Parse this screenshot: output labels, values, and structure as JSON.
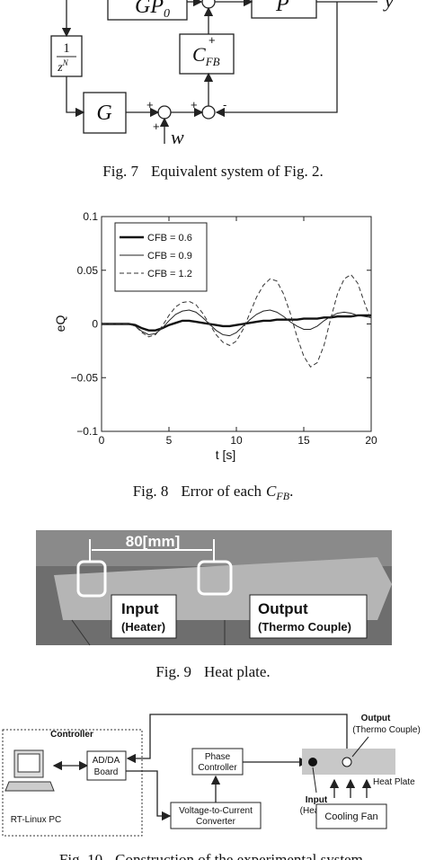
{
  "fig7": {
    "blocks": {
      "gp_base": "GP",
      "gp_sub": "0",
      "plant": "P",
      "delay_num": "1",
      "delay_den_base": "z",
      "delay_den_exp": "N",
      "feedback_base": "C",
      "feedback_sub": "FB",
      "gain": "G"
    },
    "signals": {
      "w": "w",
      "y": "y"
    },
    "signs": [
      "+",
      "+",
      "+",
      "+",
      "-"
    ],
    "caption": {
      "label": "Fig. 7",
      "text": "Equivalent system of Fig. 2."
    }
  },
  "chart_data": {
    "type": "line",
    "xlabel": "t [s]",
    "ylabel": "eQ",
    "x": [
      0,
      0.5,
      1,
      1.5,
      2,
      2.5,
      3,
      3.5,
      4,
      4.5,
      5,
      5.5,
      6,
      6.5,
      7,
      7.5,
      8,
      8.5,
      9,
      9.5,
      10,
      10.5,
      11,
      11.5,
      12,
      12.5,
      13,
      13.5,
      14,
      14.5,
      15,
      15.5,
      16,
      16.5,
      17,
      17.5,
      18,
      18.5,
      19,
      19.5,
      20
    ],
    "series": [
      {
        "name": "CFB = 0.6",
        "color": "#111111",
        "style": "thick",
        "values": [
          0,
          0,
          0,
          0,
          0,
          -0.001,
          -0.004,
          -0.006,
          -0.006,
          -0.004,
          -0.001,
          0.001,
          0.003,
          0.003,
          0.002,
          0.001,
          0,
          -0.001,
          -0.002,
          -0.002,
          -0.001,
          0,
          0.001,
          0.002,
          0.003,
          0.003,
          0.004,
          0.004,
          0.004,
          0.004,
          0.005,
          0.005,
          0.005,
          0.006,
          0.006,
          0.007,
          0.007,
          0.007,
          0.008,
          0.008,
          0.008
        ]
      },
      {
        "name": "CFB = 0.9",
        "color": "#222222",
        "style": "thin",
        "values": [
          0,
          0,
          0,
          0,
          0,
          -0.002,
          -0.007,
          -0.01,
          -0.009,
          -0.004,
          0.003,
          0.009,
          0.012,
          0.013,
          0.011,
          0.006,
          0,
          -0.006,
          -0.01,
          -0.011,
          -0.008,
          -0.002,
          0.004,
          0.009,
          0.012,
          0.013,
          0.011,
          0.007,
          0.002,
          -0.002,
          -0.005,
          -0.005,
          -0.002,
          0.003,
          0.007,
          0.01,
          0.011,
          0.01,
          0.008,
          0.007,
          0.006
        ]
      },
      {
        "name": "CFB = 1.2",
        "color": "#333333",
        "style": "dashed",
        "values": [
          0,
          0,
          0,
          0,
          0,
          -0.002,
          -0.008,
          -0.012,
          -0.01,
          -0.002,
          0.008,
          0.016,
          0.02,
          0.021,
          0.018,
          0.01,
          0,
          -0.01,
          -0.017,
          -0.02,
          -0.016,
          -0.005,
          0.01,
          0.025,
          0.036,
          0.042,
          0.04,
          0.028,
          0.01,
          -0.012,
          -0.03,
          -0.04,
          -0.036,
          -0.02,
          0.005,
          0.028,
          0.042,
          0.046,
          0.038,
          0.02,
          0.003
        ]
      }
    ],
    "xlim": [
      0,
      20
    ],
    "ylim": [
      -0.1,
      0.1
    ],
    "xticks": [
      0,
      5,
      10,
      15,
      20
    ],
    "yticks": [
      {
        "value": 0.1,
        "label": "0.1"
      },
      {
        "value": 0.05,
        "label": "0.05"
      },
      0,
      {
        "value": -0.05,
        "label": "−0.05"
      },
      {
        "value": -0.1,
        "label": "−0.1"
      }
    ],
    "legend": "upper left"
  },
  "fig8": {
    "caption": {
      "label": "Fig. 8",
      "text": "Error of each",
      "symbol": "C",
      "subscript": "FB",
      "end": "."
    }
  },
  "fig9": {
    "dimension": "80[mm]",
    "input": "Input",
    "input_note": "(Heater)",
    "output": "Output",
    "output_note": "(Thermo Couple)",
    "caption": {
      "label": "Fig. 9",
      "text": "Heat plate."
    }
  },
  "fig10": {
    "controller": "Controller",
    "pc": "RT-Linux PC",
    "board": [
      "AD/DA",
      "Board"
    ],
    "phase": [
      "Phase",
      "Controller"
    ],
    "converter": [
      "Voltage-to-Current",
      "Converter"
    ],
    "output": "Output",
    "output_note": "(Thermo Couple)",
    "heat_plate": "Heat Plate",
    "input": "Input",
    "input_note": "(Heater)",
    "fan": "Cooling Fan",
    "caption": {
      "label": "Fig. 10",
      "text": "Construction of the experimental system."
    }
  }
}
